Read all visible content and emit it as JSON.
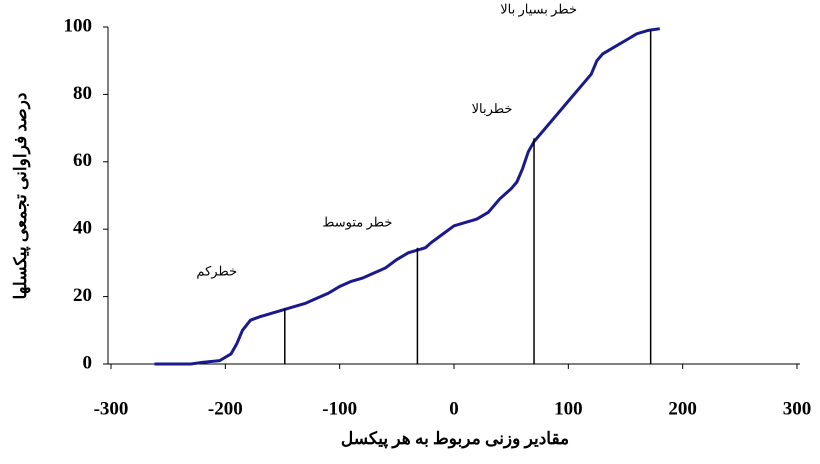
{
  "chart_data": {
    "type": "line",
    "y_label": "درصد فراوانی تجمعی پیکسلها",
    "x_label": "مقادير وزنی مربوط به هر پيکسل",
    "x": [
      -262,
      -230,
      -220,
      -205,
      -195,
      -190,
      -185,
      -178,
      -170,
      -160,
      -150,
      -140,
      -130,
      -120,
      -110,
      -100,
      -90,
      -80,
      -70,
      -60,
      -50,
      -40,
      -30,
      -25,
      -20,
      -10,
      0,
      10,
      20,
      30,
      40,
      50,
      55,
      60,
      65,
      70,
      80,
      90,
      100,
      110,
      120,
      125,
      130,
      140,
      150,
      160,
      170,
      180
    ],
    "values": [
      0,
      0,
      0.5,
      1,
      3,
      6,
      10,
      13,
      14,
      15,
      16,
      17,
      18,
      19.5,
      21,
      23,
      24.5,
      25.5,
      27,
      28.5,
      31,
      33,
      34,
      34.5,
      36,
      38.5,
      41,
      42,
      43,
      45,
      49,
      52,
      54,
      58,
      63,
      66,
      70,
      74,
      78,
      82,
      86,
      90,
      92,
      94,
      96,
      98,
      99,
      99.5
    ],
    "color": "#1a1a8c",
    "thresholds": [
      {
        "x": -148,
        "y": 16.5,
        "label": "خطرکم"
      },
      {
        "x": -32,
        "y": 34.5,
        "label": "خطر متوسط"
      },
      {
        "x": 70,
        "y": 67,
        "label": "خطربالا"
      },
      {
        "x": 172,
        "y": 99,
        "label": "خطر بسيار بالا"
      }
    ],
    "xlim": [
      -300,
      300
    ],
    "xticks": [
      -300,
      -200,
      -100,
      0,
      100,
      200,
      300
    ],
    "ylim": [
      0,
      100
    ],
    "yticks": [
      0,
      20,
      40,
      60,
      80,
      100
    ]
  }
}
